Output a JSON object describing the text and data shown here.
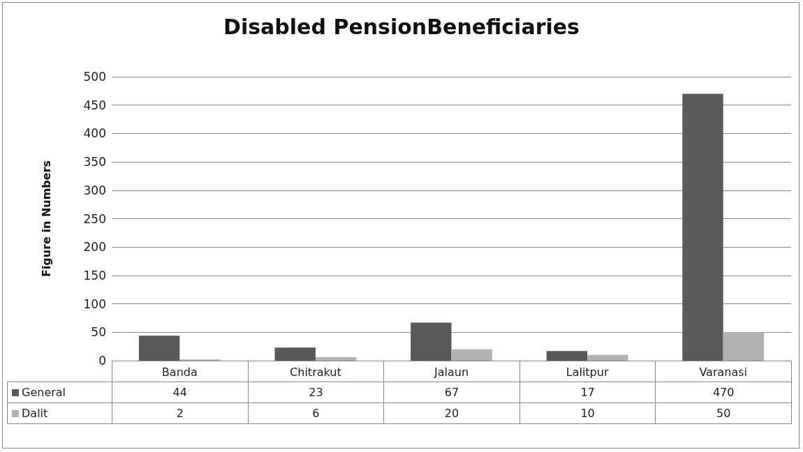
{
  "chart_data": {
    "type": "bar",
    "title": "Disabled PensionBeneficiaries",
    "ylabel": "Figure in Numbers",
    "categories": [
      "Banda",
      "Chitrakut",
      "Jalaun",
      "Lalitpur",
      "Varanasi"
    ],
    "series": [
      {
        "name": "General",
        "color": "#595959",
        "values": [
          44,
          23,
          67,
          17,
          470
        ]
      },
      {
        "name": "Dalit",
        "color": "#b2b2b2",
        "values": [
          2,
          6,
          20,
          10,
          50
        ]
      }
    ],
    "ylim": [
      0,
      500
    ],
    "yticks": [
      0,
      50,
      100,
      150,
      200,
      250,
      300,
      350,
      400,
      450,
      500
    ],
    "grid": "y",
    "legend": "bottom",
    "data_labels": true
  }
}
